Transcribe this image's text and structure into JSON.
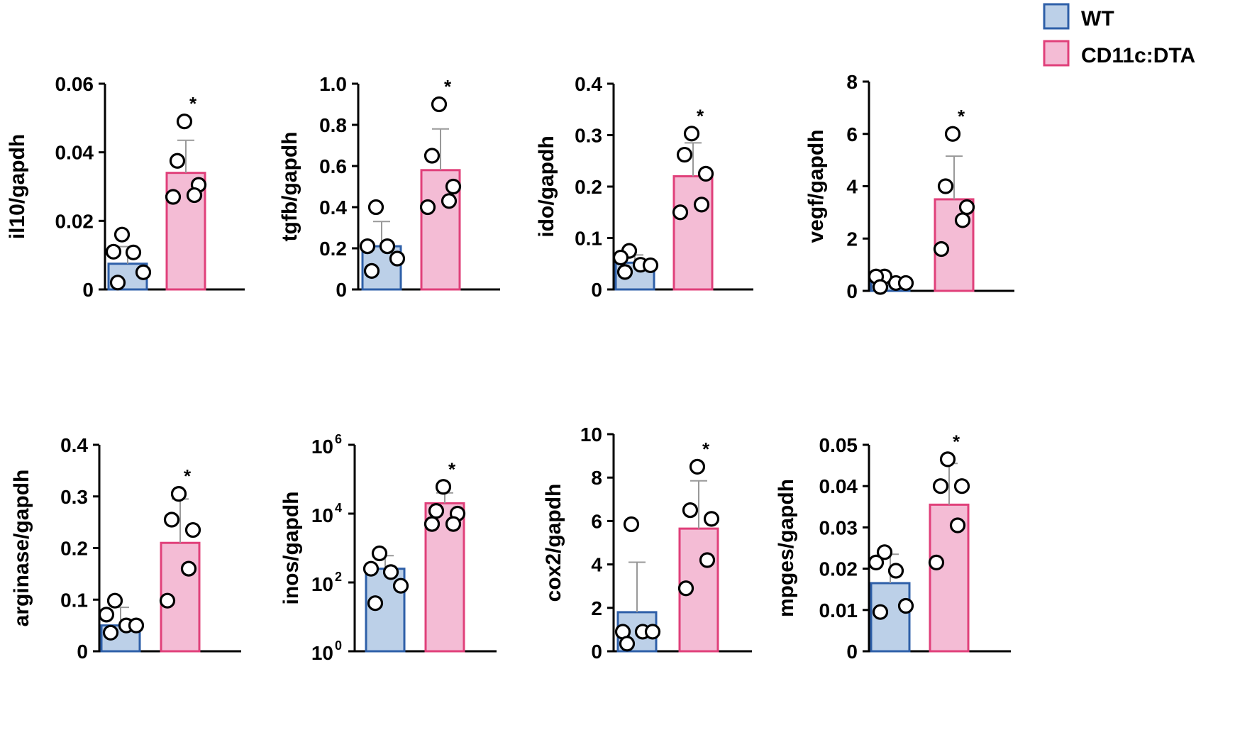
{
  "legend": [
    {
      "label": "WT",
      "fill": "#bcd0e8",
      "stroke": "#2e5fa8"
    },
    {
      "label": "CD11c:DTA",
      "fill": "#f4bcd5",
      "stroke": "#e0407a"
    }
  ],
  "colors": {
    "wt_fill": "#bcd0e8",
    "wt_stroke": "#2e5fa8",
    "dta_fill": "#f4bcd5",
    "dta_stroke": "#e0407a",
    "error_bar": "#999999"
  },
  "chart_data": [
    {
      "type": "bar",
      "scale": "linear",
      "ylabel": "il10/gapdh",
      "ylim": [
        0,
        0.06
      ],
      "yticks": [
        0,
        0.02,
        0.04,
        0.06
      ],
      "ytick_labels": [
        "0",
        "0.02",
        "0.04",
        "0.06"
      ],
      "categories": [
        "WT",
        "CD11c:DTA"
      ],
      "series": [
        {
          "name": "WT",
          "mean": 0.0075,
          "sd": 0.005,
          "points": [
            0.016,
            0.011,
            0.0108,
            0.005,
            0.002
          ]
        },
        {
          "name": "CD11c:DTA",
          "mean": 0.034,
          "sd": 0.0095,
          "points": [
            0.049,
            0.0375,
            0.0305,
            0.0275,
            0.027
          ]
        }
      ],
      "significance": "*"
    },
    {
      "type": "bar",
      "scale": "linear",
      "ylabel": "tgfb/gapdh",
      "ylim": [
        0,
        1.0
      ],
      "yticks": [
        0,
        0.2,
        0.4,
        0.6,
        0.8,
        1.0
      ],
      "ytick_labels": [
        "0",
        "0.2",
        "0.4",
        "0.6",
        "0.8",
        "1.0"
      ],
      "categories": [
        "WT",
        "CD11c:DTA"
      ],
      "series": [
        {
          "name": "WT",
          "mean": 0.21,
          "sd": 0.12,
          "points": [
            0.4,
            0.21,
            0.21,
            0.15,
            0.09
          ]
        },
        {
          "name": "CD11c:DTA",
          "mean": 0.58,
          "sd": 0.2,
          "points": [
            0.9,
            0.65,
            0.5,
            0.43,
            0.4
          ]
        }
      ],
      "significance": "*"
    },
    {
      "type": "bar",
      "scale": "linear",
      "ylabel": "ido/gapdh",
      "ylim": [
        0,
        0.4
      ],
      "yticks": [
        0,
        0.1,
        0.2,
        0.3,
        0.4
      ],
      "ytick_labels": [
        "0",
        "0.1",
        "0.2",
        "0.3",
        "0.4"
      ],
      "categories": [
        "WT",
        "CD11c:DTA"
      ],
      "series": [
        {
          "name": "WT",
          "mean": 0.052,
          "sd": 0.015,
          "points": [
            0.075,
            0.062,
            0.048,
            0.047,
            0.034
          ]
        },
        {
          "name": "CD11c:DTA",
          "mean": 0.22,
          "sd": 0.065,
          "points": [
            0.303,
            0.262,
            0.225,
            0.165,
            0.15
          ]
        }
      ],
      "significance": "*"
    },
    {
      "type": "bar",
      "scale": "linear",
      "ylabel": "vegf/gapdh",
      "ylim": [
        0,
        8
      ],
      "yticks": [
        0,
        2,
        4,
        6,
        8
      ],
      "ytick_labels": [
        "0",
        "2",
        "4",
        "6",
        "8"
      ],
      "categories": [
        "WT",
        "CD11c:DTA"
      ],
      "series": [
        {
          "name": "WT",
          "mean": 0.35,
          "sd": 0.15,
          "points": [
            0.55,
            0.55,
            0.3,
            0.3,
            0.15
          ]
        },
        {
          "name": "CD11c:DTA",
          "mean": 3.5,
          "sd": 1.65,
          "points": [
            6.0,
            4.0,
            3.2,
            2.7,
            1.6
          ]
        }
      ],
      "significance": "*"
    },
    {
      "type": "bar",
      "scale": "linear",
      "ylabel": "arginase/gapdh",
      "ylim": [
        0,
        0.4
      ],
      "yticks": [
        0,
        0.1,
        0.2,
        0.3,
        0.4
      ],
      "ytick_labels": [
        "0",
        "0.1",
        "0.2",
        "0.3",
        "0.4"
      ],
      "categories": [
        "WT",
        "CD11c:DTA"
      ],
      "series": [
        {
          "name": "WT",
          "mean": 0.05,
          "sd": 0.035,
          "points": [
            0.098,
            0.071,
            0.05,
            0.05,
            0.036
          ]
        },
        {
          "name": "CD11c:DTA",
          "mean": 0.21,
          "sd": 0.085,
          "points": [
            0.305,
            0.255,
            0.235,
            0.16,
            0.098
          ]
        }
      ],
      "significance": "*"
    },
    {
      "type": "bar",
      "scale": "log10",
      "ylabel": "inos/gapdh",
      "ylim": [
        1,
        1000000
      ],
      "yticks": [
        1,
        100,
        10000,
        1000000
      ],
      "ytick_labels": [
        {
          "base": "10",
          "exp": "0"
        },
        {
          "base": "10",
          "exp": "2"
        },
        {
          "base": "10",
          "exp": "4"
        },
        {
          "base": "10",
          "exp": "6"
        }
      ],
      "categories": [
        "WT",
        "CD11c:DTA"
      ],
      "series": [
        {
          "name": "WT",
          "mean": 250,
          "sd_top": 600,
          "points": [
            700,
            250,
            200,
            80,
            25
          ]
        },
        {
          "name": "CD11c:DTA",
          "mean": 20000,
          "sd_top": 40000,
          "points": [
            60000,
            12000,
            10000,
            5000,
            5000
          ]
        }
      ],
      "significance": "*"
    },
    {
      "type": "bar",
      "scale": "linear",
      "ylabel": "cox2/gapdh",
      "ylim": [
        0,
        10
      ],
      "yticks": [
        0,
        2,
        4,
        6,
        8,
        10
      ],
      "ytick_labels": [
        "0",
        "2",
        "4",
        "6",
        "8",
        "10"
      ],
      "categories": [
        "WT",
        "CD11c:DTA"
      ],
      "series": [
        {
          "name": "WT",
          "mean": 1.8,
          "sd": 2.3,
          "points": [
            5.85,
            0.9,
            0.9,
            0.9,
            0.35
          ]
        },
        {
          "name": "CD11c:DTA",
          "mean": 5.65,
          "sd": 2.2,
          "points": [
            8.5,
            6.5,
            6.1,
            4.2,
            2.9
          ]
        }
      ],
      "significance": "*"
    },
    {
      "type": "bar",
      "scale": "linear",
      "ylabel": "mpges/gapdh",
      "ylim": [
        0,
        0.05
      ],
      "yticks": [
        0,
        0.01,
        0.02,
        0.03,
        0.04,
        0.05
      ],
      "ytick_labels": [
        "0",
        "0.01",
        "0.02",
        "0.03",
        "0.04",
        "0.05"
      ],
      "categories": [
        "WT",
        "CD11c:DTA"
      ],
      "series": [
        {
          "name": "WT",
          "mean": 0.0165,
          "sd": 0.007,
          "points": [
            0.024,
            0.0215,
            0.0195,
            0.011,
            0.0095
          ]
        },
        {
          "name": "CD11c:DTA",
          "mean": 0.0355,
          "sd": 0.01,
          "points": [
            0.0465,
            0.04,
            0.04,
            0.0305,
            0.0215
          ]
        }
      ],
      "significance": "*"
    }
  ]
}
